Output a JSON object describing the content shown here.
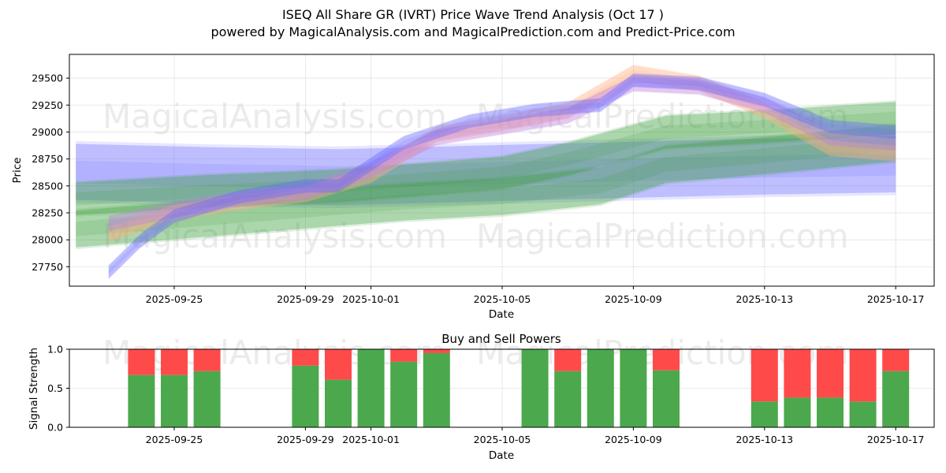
{
  "header": {
    "title": "ISEQ All Share GR (IVRT) Price Wave Trend Analysis (Oct 17 )",
    "subtitle": "powered by MagicalAnalysis.com and MagicalPrediction.com and Predict-Price.com"
  },
  "watermarks": [
    "MagicalAnalysis.com",
    "MagicalPrediction.com"
  ],
  "colors": {
    "buy": "#4ca84c",
    "sell": "#ff4a4a",
    "blue_band": "#6a6aff",
    "green_band": "#3ea03e",
    "orange_band": "#ffb080",
    "purple_band": "#c080e0"
  },
  "chart_data": [
    {
      "type": "area",
      "title": "",
      "xlabel": "Date",
      "ylabel": "Price",
      "x_ticks": [
        "2025-09-25",
        "2025-09-29",
        "2025-10-01",
        "2025-10-05",
        "2025-10-09",
        "2025-10-13",
        "2025-10-17"
      ],
      "y_ticks": [
        "27750",
        "28000",
        "28250",
        "28500",
        "28750",
        "29000",
        "29250",
        "29500"
      ],
      "xlim": [
        "2025-09-22",
        "2025-10-18"
      ],
      "ylim": [
        27570,
        29720
      ],
      "grid": true,
      "wave_series": [
        {
          "name": "blue wave",
          "color": "blue",
          "dates": [
            "2025-09-23",
            "2025-09-24",
            "2025-09-25",
            "2025-09-27",
            "2025-09-29",
            "2025-09-30",
            "2025-10-02",
            "2025-10-04",
            "2025-10-06",
            "2025-10-08",
            "2025-10-09",
            "2025-10-11",
            "2025-10-13",
            "2025-10-15",
            "2025-10-17"
          ],
          "center": [
            27700,
            28000,
            28220,
            28400,
            28500,
            28500,
            28900,
            29100,
            29200,
            29250,
            29480,
            29450,
            29300,
            29050,
            29000
          ],
          "half_width": 60
        },
        {
          "name": "orange wave",
          "color": "orange",
          "dates": [
            "2025-09-23",
            "2025-09-25",
            "2025-09-27",
            "2025-09-29",
            "2025-10-01",
            "2025-10-03",
            "2025-10-05",
            "2025-10-07",
            "2025-10-09",
            "2025-10-11",
            "2025-10-13",
            "2025-10-15",
            "2025-10-17"
          ],
          "center": [
            28050,
            28250,
            28350,
            28420,
            28600,
            28980,
            29080,
            29200,
            29550,
            29450,
            29200,
            28850,
            28800
          ],
          "half_width": 70
        },
        {
          "name": "purple wave",
          "color": "purple",
          "dates": [
            "2025-09-23",
            "2025-09-25",
            "2025-09-27",
            "2025-09-29",
            "2025-10-01",
            "2025-10-03",
            "2025-10-05",
            "2025-10-07",
            "2025-10-09",
            "2025-10-11",
            "2025-10-13",
            "2025-10-15",
            "2025-10-17"
          ],
          "center": [
            28150,
            28280,
            28380,
            28440,
            28650,
            28950,
            29050,
            29150,
            29450,
            29420,
            29250,
            28950,
            28900
          ],
          "half_width": 70
        },
        {
          "name": "blue flat band",
          "color": "blue",
          "dates": [
            "2025-09-22",
            "2025-09-26",
            "2025-09-30",
            "2025-10-05",
            "2025-10-09",
            "2025-10-13",
            "2025-10-17"
          ],
          "center": [
            28630,
            28600,
            28580,
            28620,
            28650,
            28680,
            28700
          ],
          "half_width": 260
        },
        {
          "name": "green band upper",
          "color": "green",
          "dates": [
            "2025-09-22",
            "2025-09-26",
            "2025-09-30",
            "2025-10-05",
            "2025-10-07",
            "2025-10-10",
            "2025-10-13",
            "2025-10-17"
          ],
          "center": [
            28380,
            28450,
            28500,
            28620,
            28750,
            29000,
            29050,
            29130
          ],
          "half_width": 150
        },
        {
          "name": "green band lower",
          "color": "green",
          "dates": [
            "2025-09-22",
            "2025-09-26",
            "2025-09-30",
            "2025-10-02",
            "2025-10-05",
            "2025-10-08",
            "2025-10-10",
            "2025-10-13",
            "2025-10-17"
          ],
          "center": [
            28100,
            28200,
            28300,
            28350,
            28400,
            28500,
            28700,
            28780,
            28900
          ],
          "half_width": 170
        }
      ]
    },
    {
      "type": "bar",
      "title": "Buy and Sell Powers",
      "xlabel": "Date",
      "ylabel": "Signal Strength",
      "x_ticks": [
        "2025-09-25",
        "2025-09-29",
        "2025-10-01",
        "2025-10-05",
        "2025-10-09",
        "2025-10-13",
        "2025-10-17"
      ],
      "y_ticks": [
        "0.0",
        "0.5",
        "1.0"
      ],
      "ylim": [
        0,
        1
      ],
      "categories": [
        "2025-09-24",
        "2025-09-25",
        "2025-09-26",
        "2025-09-29",
        "2025-09-30",
        "2025-10-01",
        "2025-10-02",
        "2025-10-03",
        "2025-10-06",
        "2025-10-07",
        "2025-10-08",
        "2025-10-09",
        "2025-10-10",
        "2025-10-13",
        "2025-10-14",
        "2025-10-15",
        "2025-10-16",
        "2025-10-17"
      ],
      "series": [
        {
          "name": "Buy",
          "values": [
            0.67,
            0.67,
            0.72,
            0.79,
            0.61,
            1.0,
            0.84,
            0.95,
            1.0,
            0.72,
            1.0,
            1.0,
            0.73,
            0.33,
            0.38,
            0.38,
            0.33,
            0.72
          ]
        },
        {
          "name": "Sell",
          "values": [
            0.33,
            0.33,
            0.28,
            0.21,
            0.39,
            0.0,
            0.16,
            0.05,
            0.0,
            0.28,
            0.0,
            0.0,
            0.27,
            0.67,
            0.62,
            0.62,
            0.67,
            0.28
          ]
        }
      ]
    }
  ]
}
